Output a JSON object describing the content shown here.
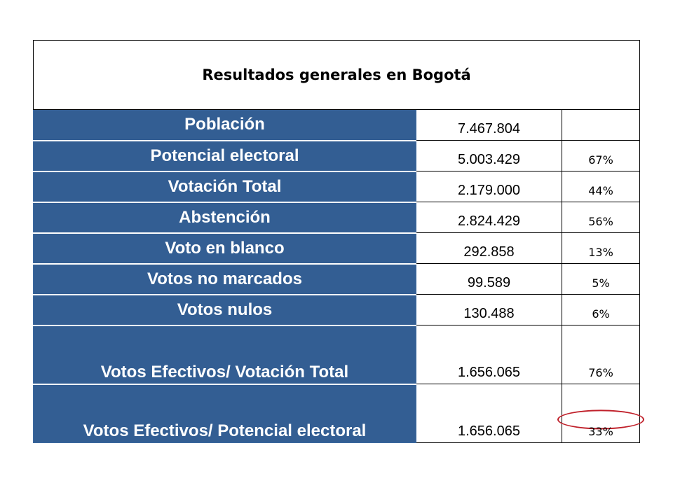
{
  "title": "Resultados generales en Bogotá",
  "rows": [
    {
      "label": "Población",
      "value": "7.467.804",
      "pct": ""
    },
    {
      "label": "Potencial electoral",
      "value": "5.003.429",
      "pct": "67%"
    },
    {
      "label": "Votación Total",
      "value": "2.179.000",
      "pct": "44%"
    },
    {
      "label": "Abstención",
      "value": "2.824.429",
      "pct": "56%"
    },
    {
      "label": "Voto en blanco",
      "value": "292.858",
      "pct": "13%"
    },
    {
      "label": "Votos no marcados",
      "value": "99.589",
      "pct": "5%"
    },
    {
      "label": "Votos nulos",
      "value": "130.488",
      "pct": "6%"
    },
    {
      "label": "Votos Efectivos/ Votación Total",
      "value": "1.656.065",
      "pct": "76%"
    },
    {
      "label": "Votos Efectivos/ Potencial electoral",
      "value": "1.656.065",
      "pct": "33%"
    }
  ],
  "highlight_color": "#c0202a",
  "label_bg_color": "#335e93"
}
